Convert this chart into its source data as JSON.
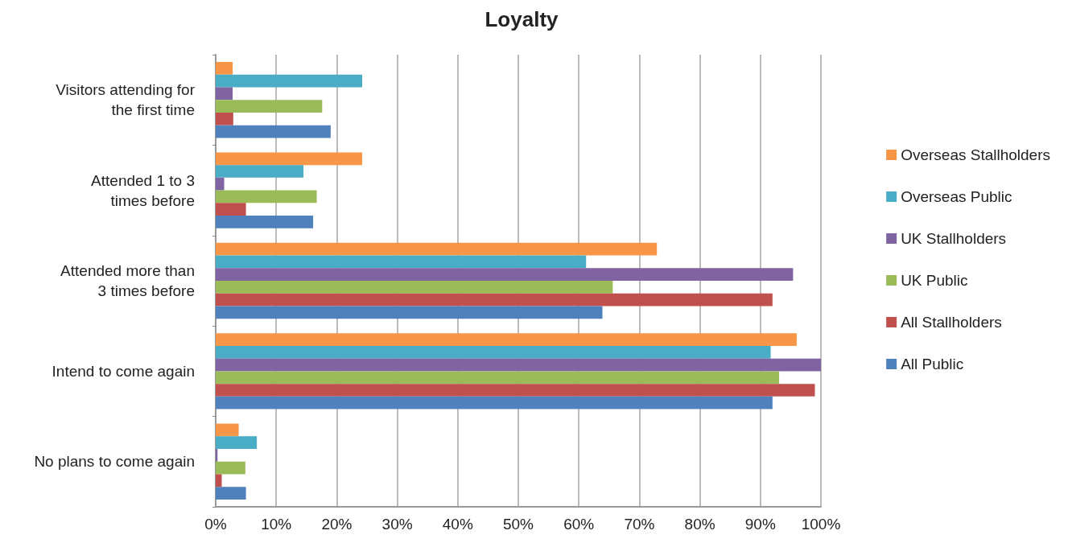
{
  "chart_data": {
    "type": "bar",
    "orientation": "horizontal",
    "title": "Loyalty",
    "categories": [
      "Visitors attending for\nthe first time",
      "Attended 1 to 3\ntimes before",
      "Attended more than\n3 times before",
      "Intend to come again",
      "No plans to come again"
    ],
    "series": [
      {
        "name": "Overseas Stallholders",
        "color": "#f79646",
        "values": [
          2.8,
          24.2,
          72.9,
          96,
          3.8
        ]
      },
      {
        "name": "Overseas Public",
        "color": "#4bacc6",
        "values": [
          24.2,
          14.5,
          61.2,
          91.7,
          6.8
        ]
      },
      {
        "name": "UK Stallholders",
        "color": "#8064a2",
        "values": [
          2.8,
          1.4,
          95.4,
          100,
          0.3
        ]
      },
      {
        "name": "UK Public",
        "color": "#9bbb59",
        "values": [
          17.6,
          16.7,
          65.6,
          93.1,
          4.9
        ]
      },
      {
        "name": "All Stallholders",
        "color": "#c0504d",
        "values": [
          2.9,
          5,
          92,
          99,
          1
        ]
      },
      {
        "name": "All Public",
        "color": "#4f81bd",
        "values": [
          19,
          16.1,
          63.9,
          92,
          5
        ]
      }
    ],
    "xlim": [
      0,
      100
    ],
    "xticks": [
      {
        "value": 0,
        "label": "0%"
      },
      {
        "value": 10,
        "label": "10%"
      },
      {
        "value": 20,
        "label": "20%"
      },
      {
        "value": 30,
        "label": "30%"
      },
      {
        "value": 40,
        "label": "40%"
      },
      {
        "value": 50,
        "label": "50%"
      },
      {
        "value": 60,
        "label": "60%"
      },
      {
        "value": 70,
        "label": "70%"
      },
      {
        "value": 80,
        "label": "80%"
      },
      {
        "value": 90,
        "label": "90%"
      },
      {
        "value": 100,
        "label": "100%"
      }
    ],
    "grid": "x",
    "legend": "right"
  }
}
